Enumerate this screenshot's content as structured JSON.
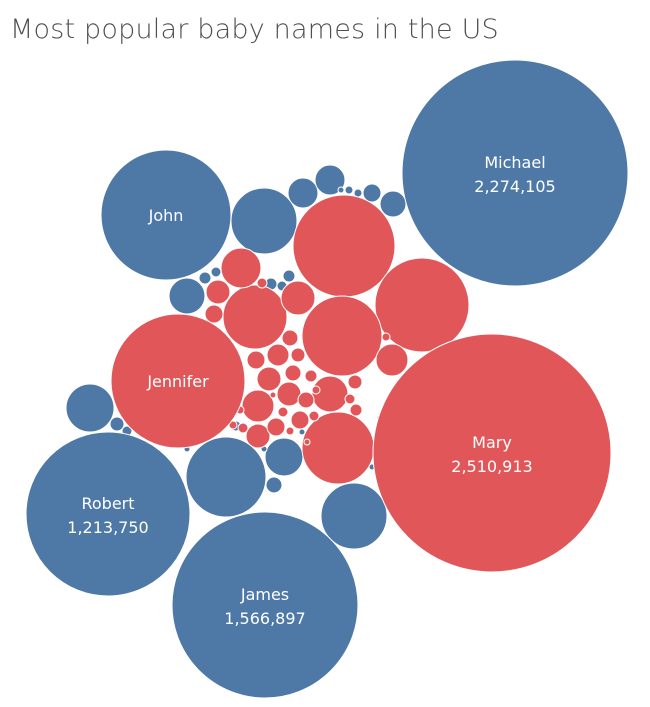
{
  "chart_data": {
    "type": "bubble",
    "title": "Most popular baby names in the US",
    "colors": {
      "boy": "#4e79a7",
      "girl": "#e15759"
    },
    "labeled_points": [
      {
        "name": "Michael",
        "value": 2274105,
        "value_label": "2,274,105",
        "group": "boy"
      },
      {
        "name": "John",
        "value": null,
        "value_label": "",
        "group": "boy"
      },
      {
        "name": "Jennifer",
        "value": null,
        "value_label": "",
        "group": "girl"
      },
      {
        "name": "Mary",
        "value": 2510913,
        "value_label": "2,510,913",
        "group": "girl"
      },
      {
        "name": "Robert",
        "value": 1213750,
        "value_label": "1,213,750",
        "group": "boy"
      },
      {
        "name": "James",
        "value": 1566897,
        "value_label": "1,566,897",
        "group": "boy"
      }
    ]
  }
}
